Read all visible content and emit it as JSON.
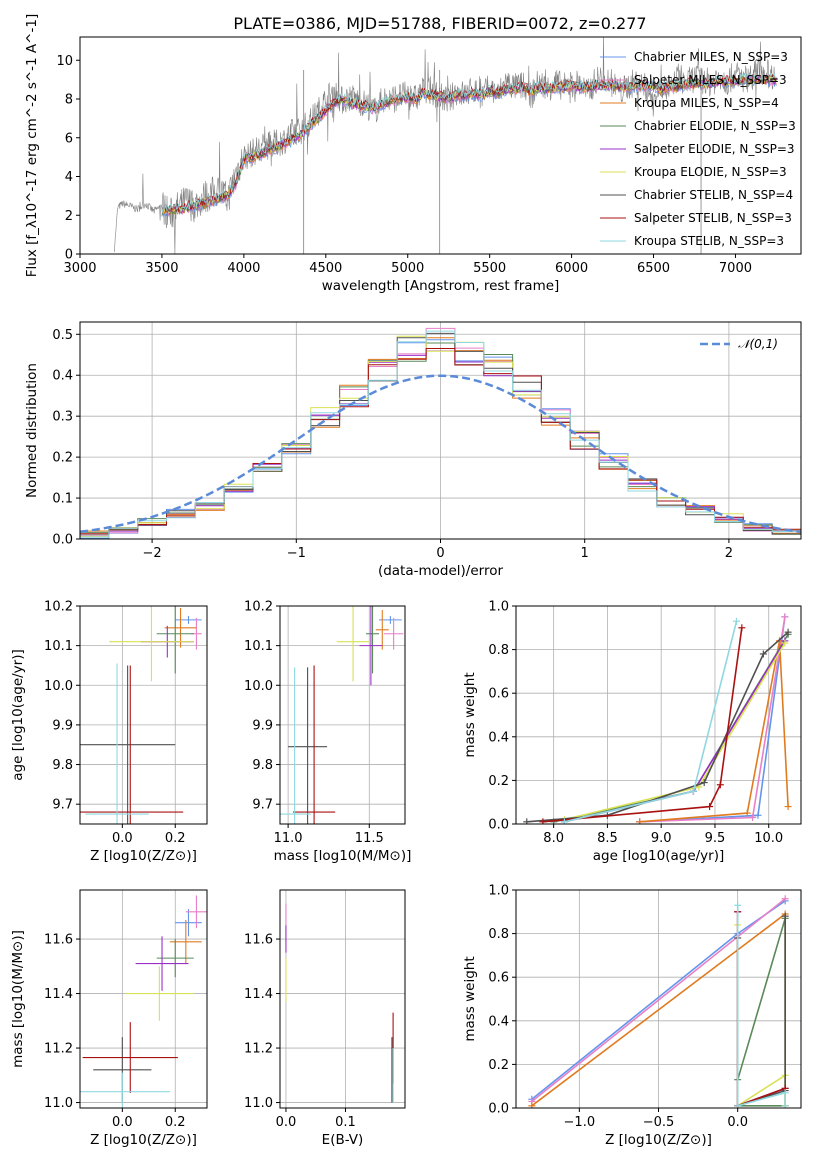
{
  "figure": {
    "title": "PLATE=0386, MJD=51788, FIBERID=0072, z=0.277"
  },
  "chart_data": [
    {
      "id": "spectrum",
      "type": "line",
      "xlabel": "wavelength [Angstrom, rest frame]",
      "ylabel": "Flux [f_λ10^-17 erg cm^-2 s^-1 A^-1]",
      "xlim": [
        3000,
        7400
      ],
      "ylim": [
        0,
        11.2
      ],
      "xticks": [
        "3000",
        "3500",
        "4000",
        "4500",
        "5000",
        "5500",
        "6000",
        "6500",
        "7000"
      ],
      "yticks": [
        "0",
        "2",
        "4",
        "6",
        "8",
        "10"
      ],
      "grid": false,
      "legend_position": "top-right",
      "observed": {
        "color": "#808080",
        "x": [
          3210,
          3230,
          3260,
          3300,
          3350,
          3400,
          3450,
          3500,
          3550,
          3600,
          3650,
          3700,
          3750,
          3800,
          3850,
          3900,
          3950,
          4000,
          4050,
          4100,
          4150,
          4200,
          4250,
          4300,
          4350,
          4400,
          4450,
          4500,
          4550,
          4600,
          4650,
          4700,
          4750,
          4800,
          4850,
          4900,
          4950,
          5000,
          5050,
          5100,
          5150,
          5200,
          5250,
          5300,
          5350,
          5400,
          5450,
          5500,
          5550,
          5600,
          5650,
          5700,
          5750,
          5800,
          5850,
          5900,
          5950,
          6000,
          6050,
          6100,
          6150,
          6200,
          6250,
          6300,
          6350,
          6400,
          6450,
          6500,
          6550,
          6600,
          6650,
          6700,
          6750,
          6800,
          6850,
          6900,
          6950,
          7000,
          7050,
          7100,
          7150,
          7200,
          7250
        ],
        "y": [
          0.3,
          2.4,
          2.6,
          2.5,
          2.3,
          2.6,
          2.2,
          2.5,
          2.0,
          2.4,
          2.7,
          2.5,
          2.9,
          3.1,
          3.3,
          2.8,
          4.2,
          5.0,
          5.2,
          5.5,
          5.6,
          5.7,
          5.9,
          6.3,
          6.4,
          6.8,
          7.3,
          8.0,
          8.4,
          7.9,
          8.1,
          7.9,
          7.7,
          7.4,
          8.0,
          8.0,
          8.1,
          8.2,
          8.0,
          8.5,
          8.4,
          8.1,
          7.9,
          8.4,
          8.2,
          8.5,
          8.1,
          8.6,
          8.2,
          8.9,
          8.6,
          8.7,
          8.1,
          8.9,
          8.5,
          8.9,
          8.6,
          8.8,
          8.8,
          8.3,
          9.0,
          9.1,
          8.8,
          8.4,
          8.7,
          8.9,
          8.6,
          8.0,
          8.7,
          8.3,
          9.2,
          8.8,
          9.1,
          9.0,
          8.8,
          9.2,
          8.9,
          9.3,
          9.0,
          9.2,
          9.5,
          9.3,
          9.1
        ]
      },
      "series": [
        {
          "name": "Chabrier MILES, N_SSP=3",
          "color": "#6495ed"
        },
        {
          "name": "Salpeter MILES, N_SSP=3",
          "color": "#e87fc9"
        },
        {
          "name": "Kroupa MILES, N_SSP=4",
          "color": "#e07b20"
        },
        {
          "name": "Chabrier ELODIE, N_SSP=3",
          "color": "#5a8a5a"
        },
        {
          "name": "Salpeter ELODIE, N_SSP=3",
          "color": "#9b30c8"
        },
        {
          "name": "Kroupa ELODIE, N_SSP=3",
          "color": "#d9e254"
        },
        {
          "name": "Chabrier STELIB, N_SSP=4",
          "color": "#505050"
        },
        {
          "name": "Salpeter STELIB, N_SSP=3",
          "color": "#aa1111"
        },
        {
          "name": "Kroupa STELIB, N_SSP=3",
          "color": "#8fd8e0"
        }
      ],
      "model_x": [
        3500,
        3550,
        3600,
        3650,
        3700,
        3750,
        3800,
        3850,
        3900,
        3950,
        4000,
        4050,
        4100,
        4150,
        4200,
        4250,
        4300,
        4350,
        4400,
        4450,
        4500,
        4550,
        4600,
        4650,
        4700,
        4750,
        4800,
        4850,
        4900,
        4950,
        5000,
        5050,
        5100,
        5150,
        5200,
        5250,
        5300,
        5350,
        5400,
        5450,
        5500,
        5550,
        5600,
        5650,
        5700,
        5750,
        5800,
        5850,
        5900,
        5950,
        6000,
        6050,
        6100,
        6150,
        6200,
        6250,
        6300,
        6350,
        6400,
        6450,
        6500,
        6550,
        6600,
        6650,
        6700,
        6750,
        6800,
        6850,
        6900,
        6950,
        7000,
        7050,
        7100,
        7150,
        7200,
        7250
      ],
      "model_y": [
        2.2,
        2.3,
        2.3,
        2.4,
        2.5,
        2.6,
        2.7,
        2.9,
        3.0,
        3.6,
        4.9,
        5.0,
        5.1,
        5.4,
        5.5,
        5.7,
        5.9,
        6.2,
        6.6,
        7.0,
        7.4,
        7.8,
        8.0,
        7.8,
        7.7,
        7.6,
        7.5,
        7.8,
        7.9,
        8.0,
        8.1,
        8.0,
        8.3,
        8.2,
        8.1,
        8.0,
        8.2,
        8.2,
        8.3,
        8.2,
        8.4,
        8.3,
        8.5,
        8.5,
        8.6,
        8.4,
        8.6,
        8.5,
        8.6,
        8.6,
        8.7,
        8.6,
        8.6,
        8.7,
        8.7,
        8.7,
        8.6,
        8.6,
        8.7,
        8.7,
        8.7,
        8.5,
        8.7,
        8.6,
        8.8,
        8.8,
        8.8,
        8.8,
        8.9,
        8.9,
        8.9,
        9.0,
        9.0,
        9.0,
        9.0,
        9.0
      ]
    },
    {
      "id": "residuals",
      "type": "bar",
      "xlabel": "(data-model)/error",
      "ylabel": "Normed distribution",
      "xlim": [
        -2.5,
        2.5
      ],
      "ylim": [
        0,
        0.53
      ],
      "xticks": [
        "−2",
        "−1",
        "0",
        "1",
        "2"
      ],
      "yticks": [
        "0.0",
        "0.1",
        "0.2",
        "0.3",
        "0.4",
        "0.5"
      ],
      "grid": true,
      "legend_position": "top-right",
      "legend": [
        "𝒩(0,1)"
      ],
      "reference_curve": {
        "name": "𝒩(0,1)",
        "color": "#5b8bd8",
        "style": "dashed"
      },
      "bin_edges": [
        -2.5,
        -2.3,
        -2.1,
        -1.9,
        -1.7,
        -1.5,
        -1.3,
        -1.1,
        -0.9,
        -0.7,
        -0.5,
        -0.3,
        -0.1,
        0.1,
        0.3,
        0.5,
        0.7,
        0.9,
        1.1,
        1.3,
        1.5,
        1.7,
        1.9,
        2.1,
        2.3,
        2.5
      ],
      "histogram_values": [
        0.01,
        0.02,
        0.04,
        0.06,
        0.08,
        0.12,
        0.17,
        0.23,
        0.3,
        0.35,
        0.41,
        0.46,
        0.48,
        0.46,
        0.42,
        0.37,
        0.3,
        0.24,
        0.19,
        0.13,
        0.09,
        0.07,
        0.05,
        0.03,
        0.02
      ]
    },
    {
      "id": "age-vs-Z",
      "type": "scatter",
      "xlabel": "Z [log10(Z/Z⊙)]",
      "ylabel": "age  [log10(age/yr)]",
      "xlim": [
        -0.16,
        0.32
      ],
      "ylim": [
        9.65,
        10.2
      ],
      "xticks": [
        "0.0",
        "0.2"
      ],
      "yticks": [
        "9.7",
        "9.8",
        "9.9",
        "10.0",
        "10.1",
        "10.2"
      ],
      "points": [
        {
          "x": 0.25,
          "y": 10.165,
          "xerr": 0.05,
          "yerr": 0.01,
          "color": "#6495ed"
        },
        {
          "x": 0.28,
          "y": 10.13,
          "xerr": 0.02,
          "yerr": 0.04,
          "color": "#e87fc9"
        },
        {
          "x": 0.22,
          "y": 10.145,
          "xerr": 0.06,
          "yerr": 0.05,
          "color": "#e07b20"
        },
        {
          "x": 0.2,
          "y": 10.13,
          "xerr": 0.07,
          "yerr": 0.1,
          "color": "#5a8a5a"
        },
        {
          "x": 0.17,
          "y": 10.11,
          "xerr": 0.1,
          "yerr": 0.04,
          "color": "#9b30c8"
        },
        {
          "x": 0.11,
          "y": 10.11,
          "xerr": 0.16,
          "yerr": 0.1,
          "color": "#d9e254"
        },
        {
          "x": 0.02,
          "y": 9.85,
          "xerr": 0.18,
          "yerr": 0.2,
          "color": "#505050"
        },
        {
          "x": 0.03,
          "y": 9.68,
          "xerr": 0.2,
          "yerr": 0.37,
          "color": "#aa1111"
        },
        {
          "x": -0.02,
          "y": 9.675,
          "xerr": 0.12,
          "yerr": 0.38,
          "color": "#8fd8e0"
        }
      ]
    },
    {
      "id": "age-vs-mass",
      "type": "scatter",
      "xlabel": "mass [log10(M/M⊙)]",
      "ylabel": "",
      "xlim": [
        10.95,
        11.72
      ],
      "ylim": [
        9.65,
        10.2
      ],
      "xticks": [
        "11.0",
        "11.5"
      ],
      "yticks": [
        "9.7",
        "9.8",
        "9.9",
        "10.0",
        "10.1",
        "10.2"
      ],
      "points": [
        {
          "x": 11.63,
          "y": 10.165,
          "xerr": 0.07,
          "yerr": 0.01,
          "color": "#6495ed"
        },
        {
          "x": 11.65,
          "y": 10.13,
          "xerr": 0.06,
          "yerr": 0.04,
          "color": "#e87fc9"
        },
        {
          "x": 11.58,
          "y": 10.14,
          "xerr": 0.04,
          "yerr": 0.05,
          "color": "#e07b20"
        },
        {
          "x": 11.52,
          "y": 10.13,
          "xerr": 0.04,
          "yerr": 0.1,
          "color": "#5a8a5a"
        },
        {
          "x": 11.51,
          "y": 10.1,
          "xerr": 0.07,
          "yerr": 0.1,
          "color": "#9b30c8"
        },
        {
          "x": 11.4,
          "y": 10.11,
          "xerr": 0.1,
          "yerr": 0.1,
          "color": "#d9e254"
        },
        {
          "x": 11.12,
          "y": 9.845,
          "xerr": 0.12,
          "yerr": 0.2,
          "color": "#505050"
        },
        {
          "x": 11.16,
          "y": 9.68,
          "xerr": 0.13,
          "yerr": 0.37,
          "color": "#aa1111"
        },
        {
          "x": 11.04,
          "y": 9.675,
          "xerr": 0.1,
          "yerr": 0.37,
          "color": "#8fd8e0"
        }
      ]
    },
    {
      "id": "massweight-vs-age",
      "type": "line",
      "xlabel": "age  [log10(age/yr)]",
      "ylabel": "mass weight",
      "xlim": [
        7.65,
        10.3
      ],
      "ylim": [
        0,
        1.0
      ],
      "xticks": [
        "8.0",
        "8.5",
        "9.0",
        "9.5",
        "10.0"
      ],
      "yticks": [
        "0.0",
        "0.2",
        "0.4",
        "0.6",
        "0.8",
        "1.0"
      ],
      "grid": true,
      "series": [
        {
          "color": "#6495ed",
          "x": [
            8.8,
            9.9,
            10.15
          ],
          "y": [
            0.01,
            0.04,
            0.95
          ]
        },
        {
          "color": "#e87fc9",
          "x": [
            8.8,
            9.85,
            10.15
          ],
          "y": [
            0.01,
            0.03,
            0.95
          ]
        },
        {
          "color": "#e07b20",
          "x": [
            8.8,
            9.8,
            10.1,
            10.18
          ],
          "y": [
            0.01,
            0.05,
            0.84,
            0.08
          ]
        },
        {
          "color": "#5a8a5a",
          "x": [
            8.0,
            9.3,
            10.18
          ],
          "y": [
            0.01,
            0.15,
            0.87
          ]
        },
        {
          "color": "#9b30c8",
          "x": [
            8.1,
            9.3,
            10.15
          ],
          "y": [
            0.01,
            0.15,
            0.84
          ]
        },
        {
          "color": "#d9e254",
          "x": [
            8.1,
            9.35,
            10.15
          ],
          "y": [
            0.02,
            0.17,
            0.83
          ]
        },
        {
          "color": "#505050",
          "x": [
            7.75,
            8.5,
            9.4,
            9.95,
            10.18
          ],
          "y": [
            0.01,
            0.04,
            0.19,
            0.78,
            0.88
          ]
        },
        {
          "color": "#aa1111",
          "x": [
            7.9,
            9.45,
            9.55,
            9.75
          ],
          "y": [
            0.01,
            0.08,
            0.18,
            0.9
          ]
        },
        {
          "color": "#8fd8e0",
          "x": [
            8.1,
            9.3,
            9.7
          ],
          "y": [
            0.01,
            0.15,
            0.93
          ]
        }
      ]
    },
    {
      "id": "mass-vs-Z",
      "type": "scatter",
      "xlabel": "Z [log10(Z/Z⊙)]",
      "ylabel": "mass [log10(M/M⊙)]",
      "xlim": [
        -0.16,
        0.32
      ],
      "ylim": [
        10.98,
        11.78
      ],
      "xticks": [
        "0.0",
        "0.2"
      ],
      "yticks": [
        "11.0",
        "11.2",
        "11.4",
        "11.6"
      ],
      "points": [
        {
          "x": 0.25,
          "y": 11.66,
          "xerr": 0.05,
          "yerr": 0.05,
          "color": "#6495ed"
        },
        {
          "x": 0.28,
          "y": 11.7,
          "xerr": 0.04,
          "yerr": 0.06,
          "color": "#e87fc9"
        },
        {
          "x": 0.24,
          "y": 11.59,
          "xerr": 0.06,
          "yerr": 0.08,
          "color": "#e07b20"
        },
        {
          "x": 0.2,
          "y": 11.53,
          "xerr": 0.07,
          "yerr": 0.07,
          "color": "#5a8a5a"
        },
        {
          "x": 0.15,
          "y": 11.51,
          "xerr": 0.1,
          "yerr": 0.1,
          "color": "#9b30c8"
        },
        {
          "x": 0.14,
          "y": 11.4,
          "xerr": 0.13,
          "yerr": 0.1,
          "color": "#d9e254"
        },
        {
          "x": 0.0,
          "y": 11.12,
          "xerr": 0.11,
          "yerr": 0.12,
          "color": "#505050"
        },
        {
          "x": 0.03,
          "y": 11.165,
          "xerr": 0.18,
          "yerr": 0.13,
          "color": "#aa1111"
        },
        {
          "x": 0.0,
          "y": 11.04,
          "xerr": 0.18,
          "yerr": 0.07,
          "color": "#8fd8e0"
        }
      ]
    },
    {
      "id": "mass-vs-EBV",
      "type": "scatter",
      "xlabel": "E(B-V)",
      "ylabel": "",
      "xlim": [
        -0.01,
        0.2
      ],
      "ylim": [
        10.98,
        11.78
      ],
      "xticks": [
        "0.0",
        "0.1"
      ],
      "yticks": [
        "11.0",
        "11.2",
        "11.4",
        "11.6"
      ],
      "points": [
        {
          "x": 0.0,
          "y": 11.66,
          "yerr": 0.07,
          "color": "#e87fc9"
        },
        {
          "x": 0.0,
          "y": 11.6,
          "yerr": 0.05,
          "color": "#9b30c8"
        },
        {
          "x": 0.0,
          "y": 11.45,
          "yerr": 0.08,
          "color": "#d9e254"
        },
        {
          "x": 0.18,
          "y": 11.2,
          "yerr": 0.13,
          "color": "#aa1111"
        },
        {
          "x": 0.178,
          "y": 11.12,
          "yerr": 0.12,
          "color": "#505050"
        },
        {
          "x": 0.18,
          "y": 11.1,
          "yerr": 0.1,
          "color": "#8fd8e0"
        }
      ]
    },
    {
      "id": "massweight-vs-Z",
      "type": "line",
      "xlabel": "Z [log10(Z/Z⊙)]",
      "ylabel": "mass weight",
      "xlim": [
        -1.4,
        0.4
      ],
      "ylim": [
        0,
        1.0
      ],
      "xticks": [
        "−1.0",
        "−0.5",
        "0.0"
      ],
      "yticks": [
        "0.0",
        "0.2",
        "0.4",
        "0.6",
        "0.8",
        "1.0"
      ],
      "grid": true,
      "series": [
        {
          "color": "#6495ed",
          "x": [
            -1.3,
            0.0,
            0.3
          ],
          "y": [
            0.04,
            0.8,
            0.95
          ]
        },
        {
          "color": "#e87fc9",
          "x": [
            -1.3,
            0.3
          ],
          "y": [
            0.03,
            0.96
          ]
        },
        {
          "color": "#e07b20",
          "x": [
            -1.3,
            0.3,
            0.3
          ],
          "y": [
            0.01,
            0.89,
            0.01
          ]
        },
        {
          "color": "#5a8a5a",
          "x": [
            0.0,
            0.3,
            0.3,
            0.0
          ],
          "y": [
            0.13,
            0.87,
            0.01,
            0.01
          ]
        },
        {
          "color": "#9b30c8",
          "x": [
            0.0,
            0.0,
            0.3
          ],
          "y": [
            0.9,
            0.01,
            0.09
          ]
        },
        {
          "color": "#d9e254",
          "x": [
            0.0,
            0.0,
            0.3,
            0.3
          ],
          "y": [
            0.84,
            0.01,
            0.15,
            0.01
          ]
        },
        {
          "color": "#505050",
          "x": [
            0.0,
            0.0,
            0.3,
            0.3
          ],
          "y": [
            0.78,
            0.01,
            0.08,
            0.88
          ]
        },
        {
          "color": "#aa1111",
          "x": [
            0.0,
            0.0,
            0.3
          ],
          "y": [
            0.9,
            0.01,
            0.09
          ]
        },
        {
          "color": "#8fd8e0",
          "x": [
            0.0,
            0.0,
            0.3,
            0.3
          ],
          "y": [
            0.93,
            0.01,
            0.07,
            0.01
          ]
        }
      ]
    }
  ]
}
